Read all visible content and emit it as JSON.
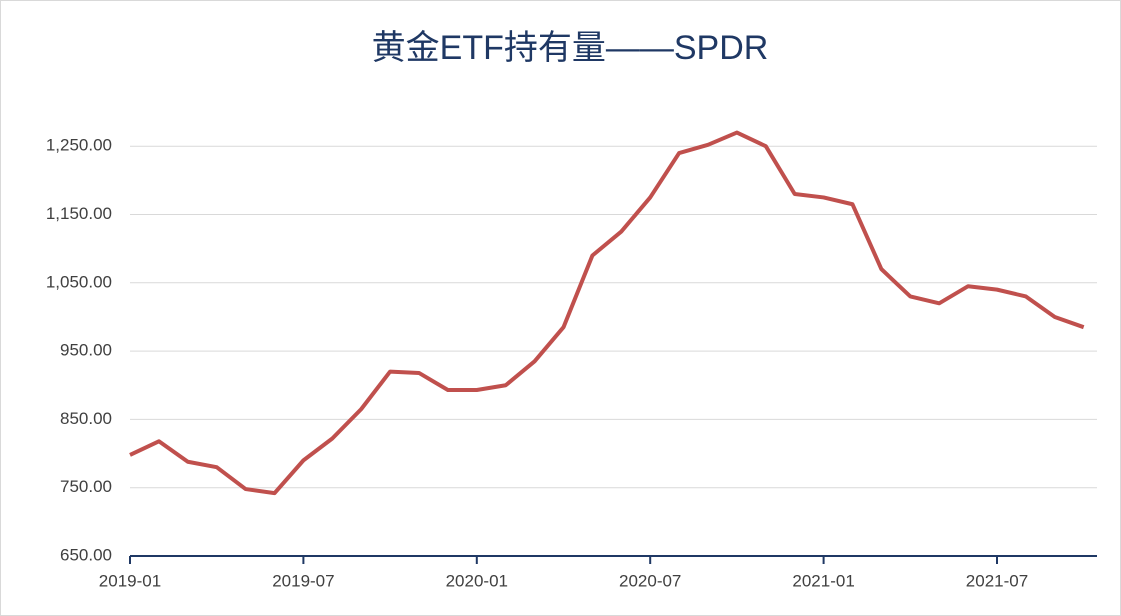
{
  "chart_data": {
    "type": "line",
    "title": "黄金ETF持有量——SPDR",
    "x": [
      "2019-01",
      "2019-02",
      "2019-03",
      "2019-04",
      "2019-05",
      "2019-06",
      "2019-07",
      "2019-08",
      "2019-09",
      "2019-10",
      "2019-11",
      "2019-12",
      "2020-01",
      "2020-02",
      "2020-03",
      "2020-04",
      "2020-05",
      "2020-06",
      "2020-07",
      "2020-08",
      "2020-09",
      "2020-10",
      "2020-11",
      "2020-12",
      "2021-01",
      "2021-02",
      "2021-03",
      "2021-04",
      "2021-05",
      "2021-06",
      "2021-07",
      "2021-08",
      "2021-09",
      "2021-10"
    ],
    "series": [
      {
        "name": "SPDR",
        "color": "#c0504d",
        "values": [
          798,
          818,
          788,
          780,
          748,
          742,
          790,
          822,
          865,
          920,
          918,
          893,
          893,
          900,
          935,
          985,
          1090,
          1125,
          1175,
          1240,
          1252,
          1270,
          1250,
          1180,
          1175,
          1165,
          1070,
          1030,
          1020,
          1045,
          1040,
          1030,
          1000,
          985
        ]
      }
    ],
    "xticks": [
      "2019-01",
      "2019-07",
      "2020-01",
      "2020-07",
      "2021-01",
      "2021-07"
    ],
    "ylim": [
      650,
      1300
    ],
    "yticks": [
      {
        "value": 650,
        "label": "650.00"
      },
      {
        "value": 750,
        "label": "750.00"
      },
      {
        "value": 850,
        "label": "850.00"
      },
      {
        "value": 950,
        "label": "950.00"
      },
      {
        "value": 1050,
        "label": "1,050.00"
      },
      {
        "value": 1150,
        "label": "1,150.00"
      },
      {
        "value": 1250,
        "label": "1,250.00"
      }
    ],
    "grid": true
  }
}
